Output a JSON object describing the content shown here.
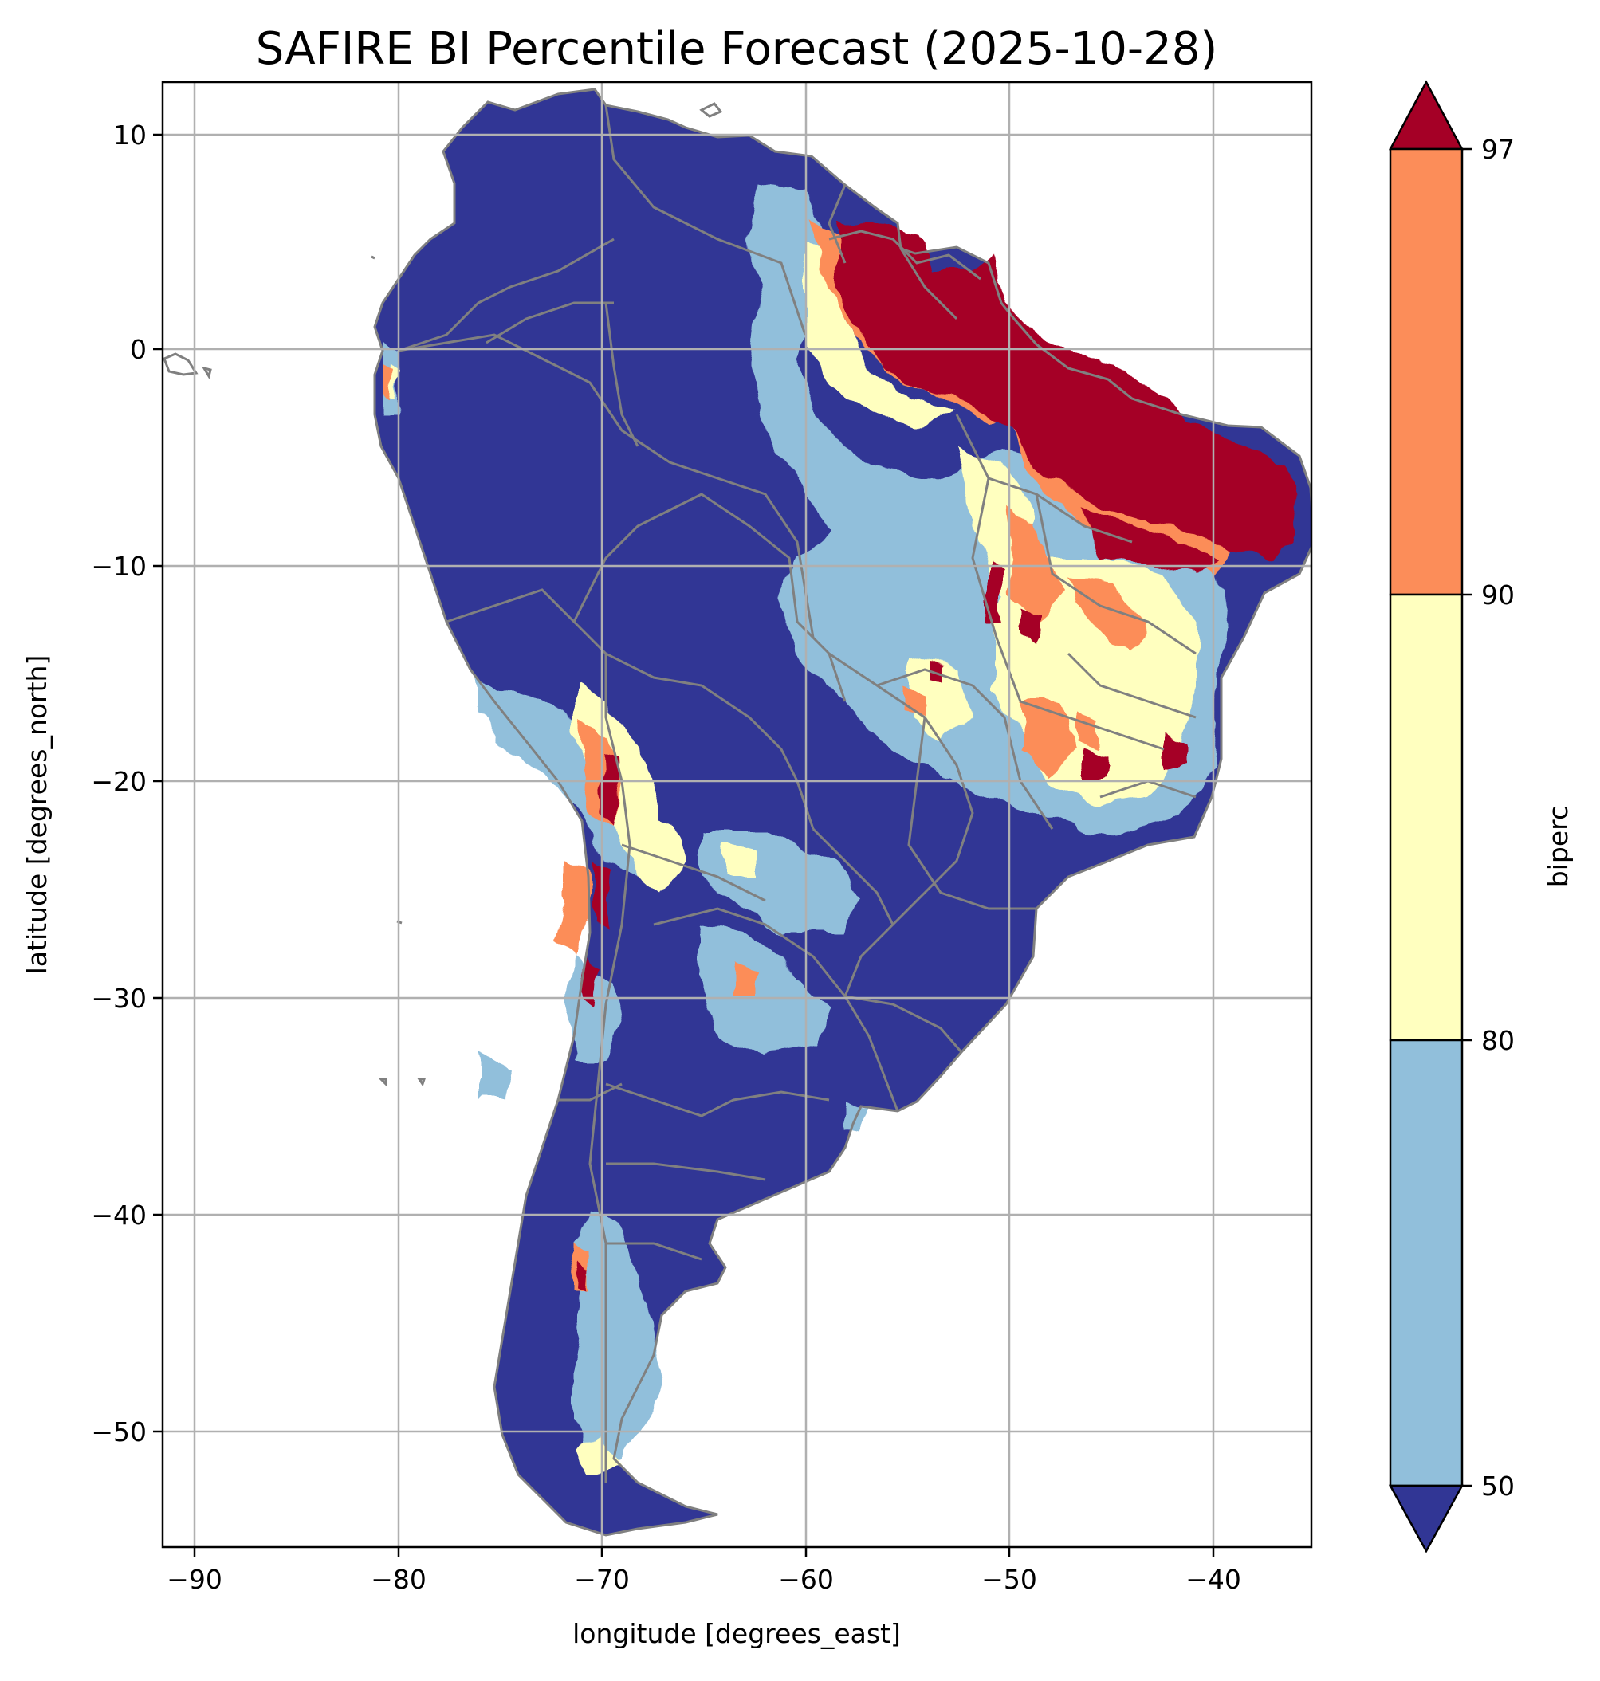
{
  "title": "SAFIRE BI Percentile Forecast (2025-10-28)",
  "colors": {
    "below_50": "#313695",
    "50_80": "#91bfdb",
    "80_90": "#ffffbf",
    "90_97": "#fc8d59",
    "above_97": "#a50026",
    "borders": "#808080",
    "grid": "#b0b0b0"
  },
  "chart_data": {
    "type": "heatmap",
    "title": "SAFIRE BI Percentile Forecast (2025-10-28)",
    "xlabel": "longitude [degrees_east]",
    "ylabel": "latitude [degrees_north]",
    "xlim": [
      -91.6,
      -35
    ],
    "ylim": [
      -55.9,
      12.4
    ],
    "xticks": [
      -90,
      -80,
      -70,
      -60,
      -50,
      -40
    ],
    "xtick_labels": [
      "−90",
      "−80",
      "−70",
      "−60",
      "−50",
      "−40"
    ],
    "yticks": [
      10,
      0,
      -10,
      -20,
      -30,
      -40,
      -50
    ],
    "ytick_labels": [
      "10",
      "0",
      "−10",
      "−20",
      "−30",
      "−40",
      "−50"
    ],
    "grid": true,
    "colorbar": {
      "label": "biperc",
      "boundaries": [
        50,
        80,
        90,
        97
      ],
      "tick_labels": [
        "50",
        "80",
        "90",
        "97"
      ],
      "extend": "both"
    },
    "region": "South America"
  }
}
